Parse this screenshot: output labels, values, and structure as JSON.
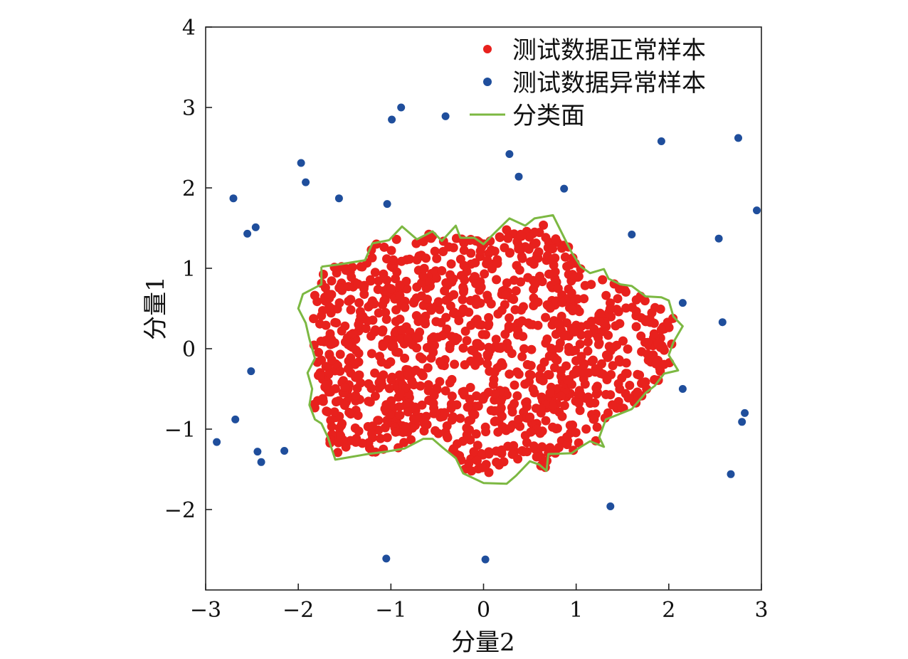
{
  "chart_data": {
    "type": "scatter",
    "title": "",
    "xlabel": "分量2",
    "ylabel": "分量1",
    "xlim": [
      -3,
      3
    ],
    "ylim": [
      -3,
      4
    ],
    "xticks": [
      -3,
      -2,
      -1,
      0,
      1,
      2,
      3
    ],
    "yticks": [
      -2,
      -1,
      0,
      1,
      2,
      3,
      4
    ],
    "xtick_labels": [
      "−3",
      "−2",
      "−1",
      "0",
      "1",
      "2",
      "3"
    ],
    "ytick_labels": [
      "−2",
      "−1",
      "0",
      "1",
      "2",
      "3",
      "4"
    ],
    "grid": false,
    "legend_position": "top-right",
    "legend": [
      {
        "label": "测试数据正常样本",
        "marker": "dot",
        "color": "#e8211d"
      },
      {
        "label": "测试数据异常样本",
        "marker": "dot",
        "color": "#1f4e9c"
      },
      {
        "label": "分类面",
        "marker": "line",
        "color": "#7cb842"
      }
    ],
    "series": [
      {
        "name": "测试数据异常样本",
        "kind": "points",
        "color": "#1f4e9c",
        "points": [
          [
            -2.7,
            1.87
          ],
          [
            -2.55,
            1.43
          ],
          [
            -2.46,
            1.51
          ],
          [
            -1.97,
            2.31
          ],
          [
            -1.92,
            2.07
          ],
          [
            -1.56,
            1.87
          ],
          [
            -1.04,
            1.8
          ],
          [
            -0.99,
            2.85
          ],
          [
            -0.89,
            3.0
          ],
          [
            -0.41,
            2.89
          ],
          [
            0.28,
            2.42
          ],
          [
            0.38,
            2.14
          ],
          [
            0.87,
            1.99
          ],
          [
            1.6,
            1.42
          ],
          [
            1.92,
            2.58
          ],
          [
            2.54,
            1.37
          ],
          [
            2.75,
            2.62
          ],
          [
            2.95,
            1.72
          ],
          [
            2.15,
            0.57
          ],
          [
            2.58,
            0.33
          ],
          [
            2.15,
            -0.5
          ],
          [
            2.82,
            -0.8
          ],
          [
            2.79,
            -0.91
          ],
          [
            2.67,
            -1.56
          ],
          [
            1.37,
            -1.96
          ],
          [
            0.02,
            -2.62
          ],
          [
            -1.05,
            -2.61
          ],
          [
            -2.15,
            -1.27
          ],
          [
            -2.4,
            -1.41
          ],
          [
            -2.44,
            -1.28
          ],
          [
            -2.68,
            -0.88
          ],
          [
            -2.51,
            -0.28
          ],
          [
            -2.88,
            -1.16
          ]
        ]
      },
      {
        "name": "分类面",
        "kind": "boundary",
        "color": "#7cb842",
        "points": [
          [
            -1.75,
            1.02
          ],
          [
            -1.55,
            1.05
          ],
          [
            -1.28,
            1.1
          ],
          [
            -1.2,
            1.31
          ],
          [
            -1.02,
            1.35
          ],
          [
            -0.88,
            1.52
          ],
          [
            -0.72,
            1.36
          ],
          [
            -0.55,
            1.46
          ],
          [
            -0.45,
            1.34
          ],
          [
            -0.3,
            1.53
          ],
          [
            -0.25,
            1.38
          ],
          [
            -0.1,
            1.38
          ],
          [
            0.0,
            1.3
          ],
          [
            0.12,
            1.44
          ],
          [
            0.28,
            1.62
          ],
          [
            0.45,
            1.53
          ],
          [
            0.55,
            1.62
          ],
          [
            0.75,
            1.66
          ],
          [
            0.88,
            1.36
          ],
          [
            0.95,
            1.2
          ],
          [
            1.05,
            1.02
          ],
          [
            1.15,
            0.94
          ],
          [
            1.3,
            0.99
          ],
          [
            1.35,
            0.87
          ],
          [
            1.48,
            0.8
          ],
          [
            1.6,
            0.78
          ],
          [
            1.75,
            0.65
          ],
          [
            1.92,
            0.64
          ],
          [
            2.0,
            0.6
          ],
          [
            2.05,
            0.4
          ],
          [
            2.15,
            0.28
          ],
          [
            2.05,
            0.08
          ],
          [
            2.0,
            -0.08
          ],
          [
            2.1,
            -0.27
          ],
          [
            1.95,
            -0.31
          ],
          [
            1.85,
            -0.46
          ],
          [
            1.75,
            -0.55
          ],
          [
            1.6,
            -0.75
          ],
          [
            1.45,
            -0.82
          ],
          [
            1.32,
            -0.88
          ],
          [
            1.25,
            -1.1
          ],
          [
            1.3,
            -1.22
          ],
          [
            1.15,
            -1.15
          ],
          [
            1.05,
            -1.22
          ],
          [
            0.95,
            -1.3
          ],
          [
            0.7,
            -1.31
          ],
          [
            0.68,
            -1.52
          ],
          [
            0.6,
            -1.44
          ],
          [
            0.5,
            -1.4
          ],
          [
            0.35,
            -1.58
          ],
          [
            0.25,
            -1.68
          ],
          [
            0.0,
            -1.67
          ],
          [
            -0.22,
            -1.55
          ],
          [
            -0.3,
            -1.36
          ],
          [
            -0.44,
            -1.23
          ],
          [
            -0.55,
            -1.12
          ],
          [
            -0.65,
            -1.12
          ],
          [
            -0.85,
            -1.24
          ],
          [
            -1.05,
            -1.28
          ],
          [
            -1.25,
            -1.31
          ],
          [
            -1.45,
            -1.35
          ],
          [
            -1.6,
            -1.38
          ],
          [
            -1.68,
            -1.1
          ],
          [
            -1.75,
            -0.93
          ],
          [
            -1.82,
            -0.88
          ],
          [
            -1.88,
            -0.7
          ],
          [
            -1.85,
            -0.5
          ],
          [
            -1.9,
            -0.3
          ],
          [
            -1.82,
            -0.12
          ],
          [
            -1.88,
            0.12
          ],
          [
            -1.92,
            0.32
          ],
          [
            -2.0,
            0.5
          ],
          [
            -1.95,
            0.68
          ],
          [
            -1.75,
            0.8
          ],
          [
            -1.75,
            1.02
          ]
        ]
      },
      {
        "name": "测试数据正常样本",
        "kind": "generated_cluster",
        "color": "#e8211d",
        "count": 1150
      }
    ]
  }
}
